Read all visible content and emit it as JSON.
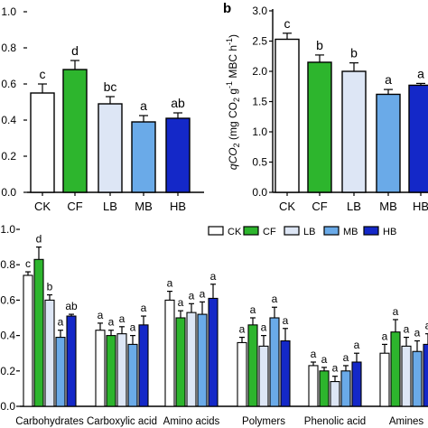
{
  "colors": {
    "CK": "#ffffff",
    "CF": "#2db52d",
    "LB": "#dde6f5",
    "MB": "#6aaae8",
    "HB": "#1428c8",
    "axis": "#000000"
  },
  "chart_data": [
    {
      "id": "a",
      "type": "bar",
      "panel_label": "",
      "ylabel": "",
      "ylim": [
        0.0,
        1.0
      ],
      "yticks": [
        "0.0",
        "0.2",
        "0.4",
        "0.6",
        "0.8",
        "1.0"
      ],
      "categories": [
        "CK",
        "CF",
        "LB",
        "MB",
        "HB"
      ],
      "values": [
        0.55,
        0.68,
        0.49,
        0.39,
        0.41
      ],
      "errors": [
        0.05,
        0.05,
        0.04,
        0.035,
        0.03
      ],
      "letters": [
        "c",
        "d",
        "bc",
        "a",
        "ab"
      ]
    },
    {
      "id": "b",
      "type": "bar",
      "panel_label": "b",
      "ylabel_parts": [
        "qCO",
        "2",
        " (mg CO",
        "2",
        " g",
        "-1",
        " MBC h",
        "-1",
        ")"
      ],
      "ylim": [
        0.0,
        3.0
      ],
      "yticks": [
        "0.0",
        "0.5",
        "1.0",
        "1.5",
        "2.0",
        "2.5",
        "3.0"
      ],
      "categories": [
        "CK",
        "CF",
        "LB",
        "MB",
        "HB"
      ],
      "values": [
        2.53,
        2.15,
        2.0,
        1.62,
        1.77
      ],
      "errors": [
        0.1,
        0.12,
        0.14,
        0.08,
        0.03
      ],
      "letters": [
        "c",
        "b",
        "b",
        "a",
        "a"
      ]
    },
    {
      "id": "c",
      "type": "bar",
      "ylim": [
        0.0,
        1.0
      ],
      "yticks": [
        "0.0",
        "0.2",
        "0.4",
        "0.6",
        "0.8",
        "1.0"
      ],
      "legend": [
        "CK",
        "CF",
        "LB",
        "MB",
        "HB"
      ],
      "legend_position": "top-right",
      "categories": [
        "Carbohydrates",
        "Carboxylic acid",
        "Amino acids",
        "Polymers",
        "Phenolic acid",
        "Amines"
      ],
      "series": [
        {
          "name": "CK",
          "values": [
            0.74,
            0.43,
            0.6,
            0.36,
            0.23,
            0.3
          ],
          "errors": [
            0.02,
            0.04,
            0.05,
            0.03,
            0.02,
            0.05
          ],
          "letters": [
            "c",
            "a",
            "a",
            "a",
            "a",
            "a"
          ]
        },
        {
          "name": "CF",
          "values": [
            0.83,
            0.4,
            0.5,
            0.46,
            0.2,
            0.42
          ],
          "errors": [
            0.07,
            0.03,
            0.04,
            0.04,
            0.02,
            0.07
          ],
          "letters": [
            "d",
            "a",
            "a",
            "a",
            "a",
            "a"
          ]
        },
        {
          "name": "LB",
          "values": [
            0.6,
            0.41,
            0.53,
            0.34,
            0.14,
            0.34
          ],
          "errors": [
            0.03,
            0.04,
            0.05,
            0.06,
            0.03,
            0.05
          ],
          "letters": [
            "b",
            "a",
            "a",
            "a",
            "a",
            "a"
          ]
        },
        {
          "name": "MB",
          "values": [
            0.39,
            0.35,
            0.52,
            0.5,
            0.2,
            0.31
          ],
          "errors": [
            0.04,
            0.05,
            0.07,
            0.06,
            0.03,
            0.06
          ],
          "letters": [
            "a",
            "a",
            "a",
            "a",
            "a",
            "a"
          ]
        },
        {
          "name": "HB",
          "values": [
            0.51,
            0.46,
            0.61,
            0.37,
            0.25,
            0.35
          ],
          "errors": [
            0.01,
            0.05,
            0.08,
            0.07,
            0.05,
            0.06
          ],
          "letters": [
            "ab",
            "a",
            "a",
            "a",
            "a",
            "a"
          ]
        }
      ]
    }
  ]
}
